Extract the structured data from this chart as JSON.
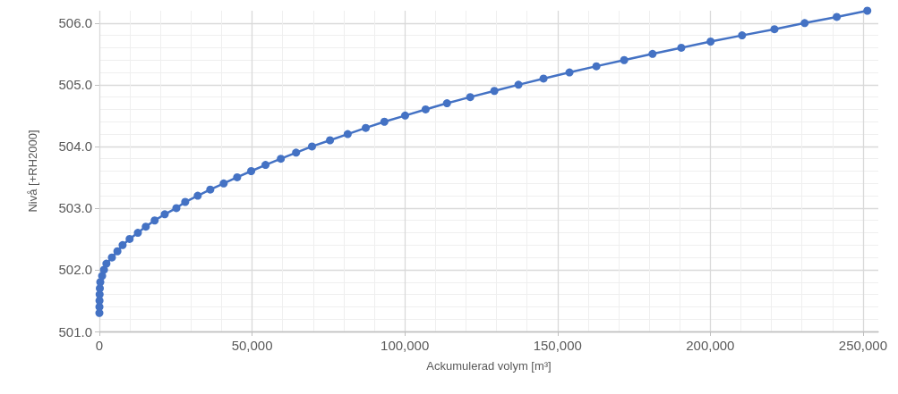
{
  "chart_data": {
    "type": "line",
    "xlabel": "Ackumulerad volym [m³]",
    "ylabel": "Nivå [+RH2000]",
    "x": [
      0,
      15,
      40,
      80,
      150,
      300,
      900,
      1500,
      2300,
      4100,
      5900,
      7600,
      9900,
      12600,
      15200,
      18100,
      21400,
      25200,
      28100,
      32200,
      36300,
      40700,
      45100,
      49700,
      54400,
      59400,
      64400,
      69600,
      75500,
      81300,
      87200,
      93300,
      100100,
      106800,
      113800,
      121400,
      129300,
      137200,
      145400,
      153900,
      162700,
      171800,
      181100,
      190500,
      200100,
      210400,
      221000,
      230900,
      241400,
      251400
    ],
    "series": [
      {
        "color": "#4472c4",
        "values": [
          501.3,
          501.4,
          501.5,
          501.6,
          501.7,
          501.8,
          501.9,
          502.0,
          502.1,
          502.2,
          502.3,
          502.4,
          502.5,
          502.6,
          502.7,
          502.8,
          502.9,
          503.0,
          503.1,
          503.2,
          503.3,
          503.4,
          503.5,
          503.6,
          503.7,
          503.8,
          503.9,
          504.0,
          504.1,
          504.2,
          504.3,
          504.4,
          504.5,
          504.6,
          504.7,
          504.8,
          504.9,
          505.0,
          505.1,
          505.2,
          505.3,
          505.4,
          505.5,
          505.6,
          505.7,
          505.8,
          505.9,
          506.0,
          506.1,
          506.2
        ]
      }
    ],
    "xlim": [
      0,
      255000
    ],
    "xticks": [
      0,
      {
        "value": 50000,
        "label": "50,000"
      },
      {
        "value": 100000,
        "label": "100,000"
      },
      {
        "value": 150000,
        "label": "150,000"
      },
      {
        "value": 200000,
        "label": "200,000"
      },
      {
        "value": 250000,
        "label": "250,000"
      }
    ],
    "ylim": [
      501,
      506.2
    ],
    "yticks": [
      {
        "value": 501,
        "label": "501.0"
      },
      {
        "value": 502,
        "label": "502.0"
      },
      {
        "value": 503,
        "label": "503.0"
      },
      {
        "value": 504,
        "label": "504.0"
      },
      {
        "value": 505,
        "label": "505.0"
      },
      {
        "value": 506,
        "label": "506.0"
      }
    ],
    "grid": true,
    "marker": "circle",
    "line_style": "solid"
  }
}
